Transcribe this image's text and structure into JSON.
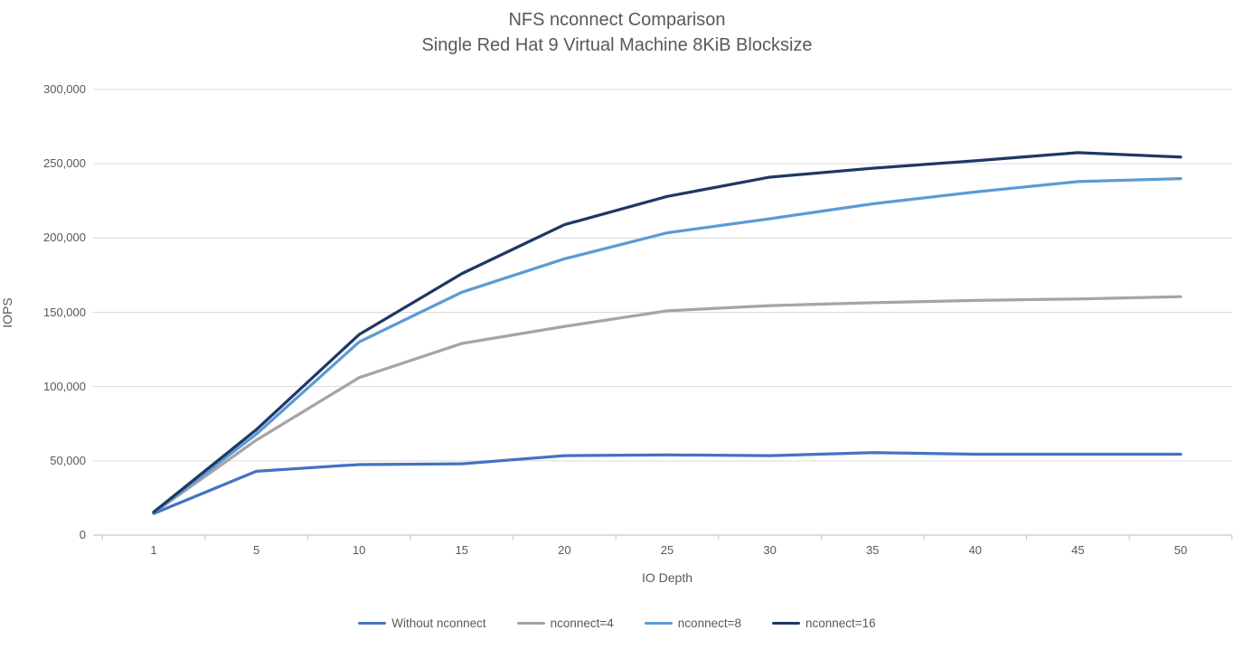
{
  "title": {
    "line1": "NFS nconnect Comparison",
    "line2": "Single Red Hat 9 Virtual Machine 8KiB Blocksize"
  },
  "chart_data": {
    "type": "line",
    "x": [
      1,
      5,
      10,
      15,
      20,
      25,
      30,
      35,
      40,
      45,
      50
    ],
    "x_tick_labels": [
      "1",
      "5",
      "10",
      "15",
      "20",
      "25",
      "30",
      "35",
      "40",
      "45",
      "50"
    ],
    "xlabel": "IO Depth",
    "ylabel": "IOPS",
    "ylim": [
      0,
      300000
    ],
    "y_tick_step": 50000,
    "y_ticks": [
      0,
      50000,
      100000,
      150000,
      200000,
      250000,
      300000
    ],
    "y_tick_labels": [
      "0",
      "50,000",
      "100,000",
      "150,000",
      "200,000",
      "250,000",
      "300,000"
    ],
    "grid": true,
    "legend_position": "bottom",
    "series": [
      {
        "name": "Without nconnect",
        "color": "#4472C4",
        "values": [
          14500,
          43000,
          47500,
          48000,
          53500,
          54000,
          53500,
          55500,
          54500,
          54500,
          54500
        ]
      },
      {
        "name": "nconnect=4",
        "color": "#A5A5A5",
        "values": [
          15000,
          64000,
          106000,
          129000,
          140500,
          151000,
          154500,
          156500,
          158000,
          159000,
          160500
        ]
      },
      {
        "name": "nconnect=8",
        "color": "#5B9BD5",
        "values": [
          15000,
          68000,
          130000,
          163500,
          186000,
          203500,
          213000,
          223000,
          231000,
          238000,
          240000
        ]
      },
      {
        "name": "nconnect=16",
        "color": "#1F3864",
        "values": [
          15500,
          71000,
          135000,
          176000,
          209000,
          228000,
          241000,
          247000,
          252000,
          257500,
          254500
        ]
      }
    ]
  },
  "colors": {
    "background": "#FFFFFF",
    "title_text": "#595959",
    "axis_text": "#595959",
    "gridline": "#D9D9D9",
    "axis_line": "#BFBFBF"
  }
}
